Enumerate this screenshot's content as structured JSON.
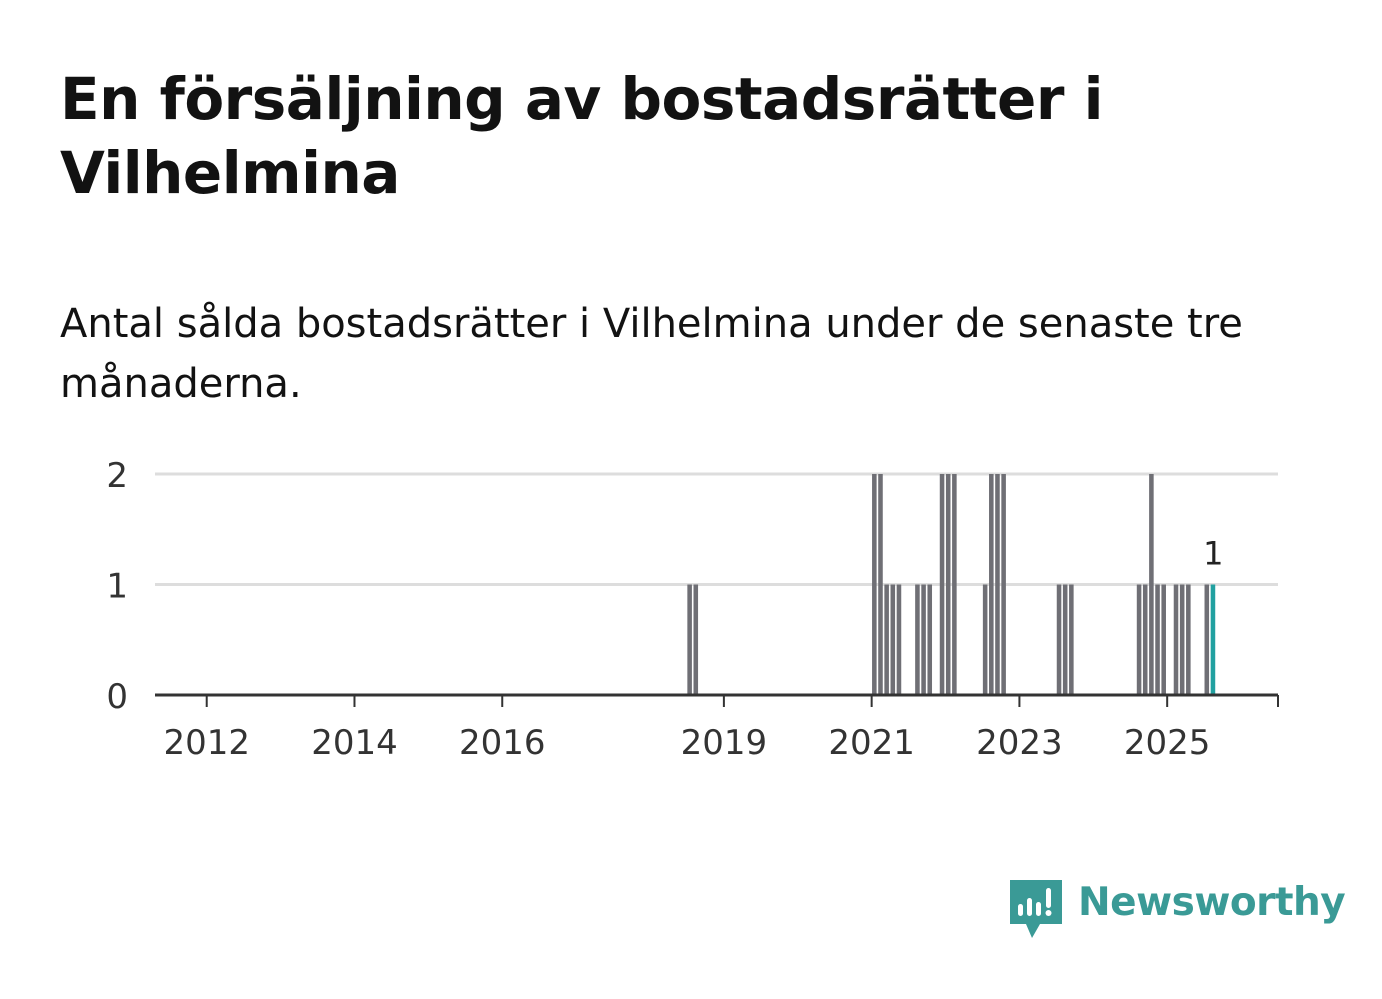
{
  "title": "En försäljning av bostadsrätter i Vilhelmina",
  "subtitle": "Antal sålda bostadsrätter i Vilhelmina under de senaste tre månaderna.",
  "brand": {
    "name": "Newsworthy",
    "color": "#3a9a96",
    "icon": "newsworthy-logo-icon"
  },
  "colors": {
    "bar": "#6f6f75",
    "highlight": "#21a0a0",
    "grid": "#dddddd",
    "axis": "#333333"
  },
  "chart_data": {
    "type": "bar",
    "xlabel": "",
    "ylabel": "",
    "ylim": [
      0,
      2
    ],
    "yticks": [
      0,
      1,
      2
    ],
    "xticks": [
      "2012",
      "2014",
      "2016",
      "2019",
      "2021",
      "2023",
      "2025"
    ],
    "grid": true,
    "highlight_label": "1",
    "series": [
      {
        "values": [
          {
            "x": "2018-07",
            "y": 1
          },
          {
            "x": "2018-08",
            "y": 1
          },
          {
            "x": "2021-01",
            "y": 2
          },
          {
            "x": "2021-02",
            "y": 2
          },
          {
            "x": "2021-03",
            "y": 1
          },
          {
            "x": "2021-04",
            "y": 1
          },
          {
            "x": "2021-05",
            "y": 1
          },
          {
            "x": "2021-08",
            "y": 1
          },
          {
            "x": "2021-09",
            "y": 1
          },
          {
            "x": "2021-10",
            "y": 1
          },
          {
            "x": "2021-12",
            "y": 2
          },
          {
            "x": "2022-01",
            "y": 2
          },
          {
            "x": "2022-02",
            "y": 2
          },
          {
            "x": "2022-07",
            "y": 1
          },
          {
            "x": "2022-08",
            "y": 2
          },
          {
            "x": "2022-09",
            "y": 2
          },
          {
            "x": "2022-10",
            "y": 2
          },
          {
            "x": "2023-07",
            "y": 1
          },
          {
            "x": "2023-08",
            "y": 1
          },
          {
            "x": "2023-09",
            "y": 1
          },
          {
            "x": "2024-08",
            "y": 1
          },
          {
            "x": "2024-09",
            "y": 1
          },
          {
            "x": "2024-10",
            "y": 2
          },
          {
            "x": "2024-11",
            "y": 1
          },
          {
            "x": "2024-12",
            "y": 1
          },
          {
            "x": "2025-02",
            "y": 1
          },
          {
            "x": "2025-03",
            "y": 1
          },
          {
            "x": "2025-04",
            "y": 1
          },
          {
            "x": "2025-07",
            "y": 1
          },
          {
            "x": "2025-08",
            "y": 1,
            "highlight": true
          }
        ]
      }
    ]
  }
}
